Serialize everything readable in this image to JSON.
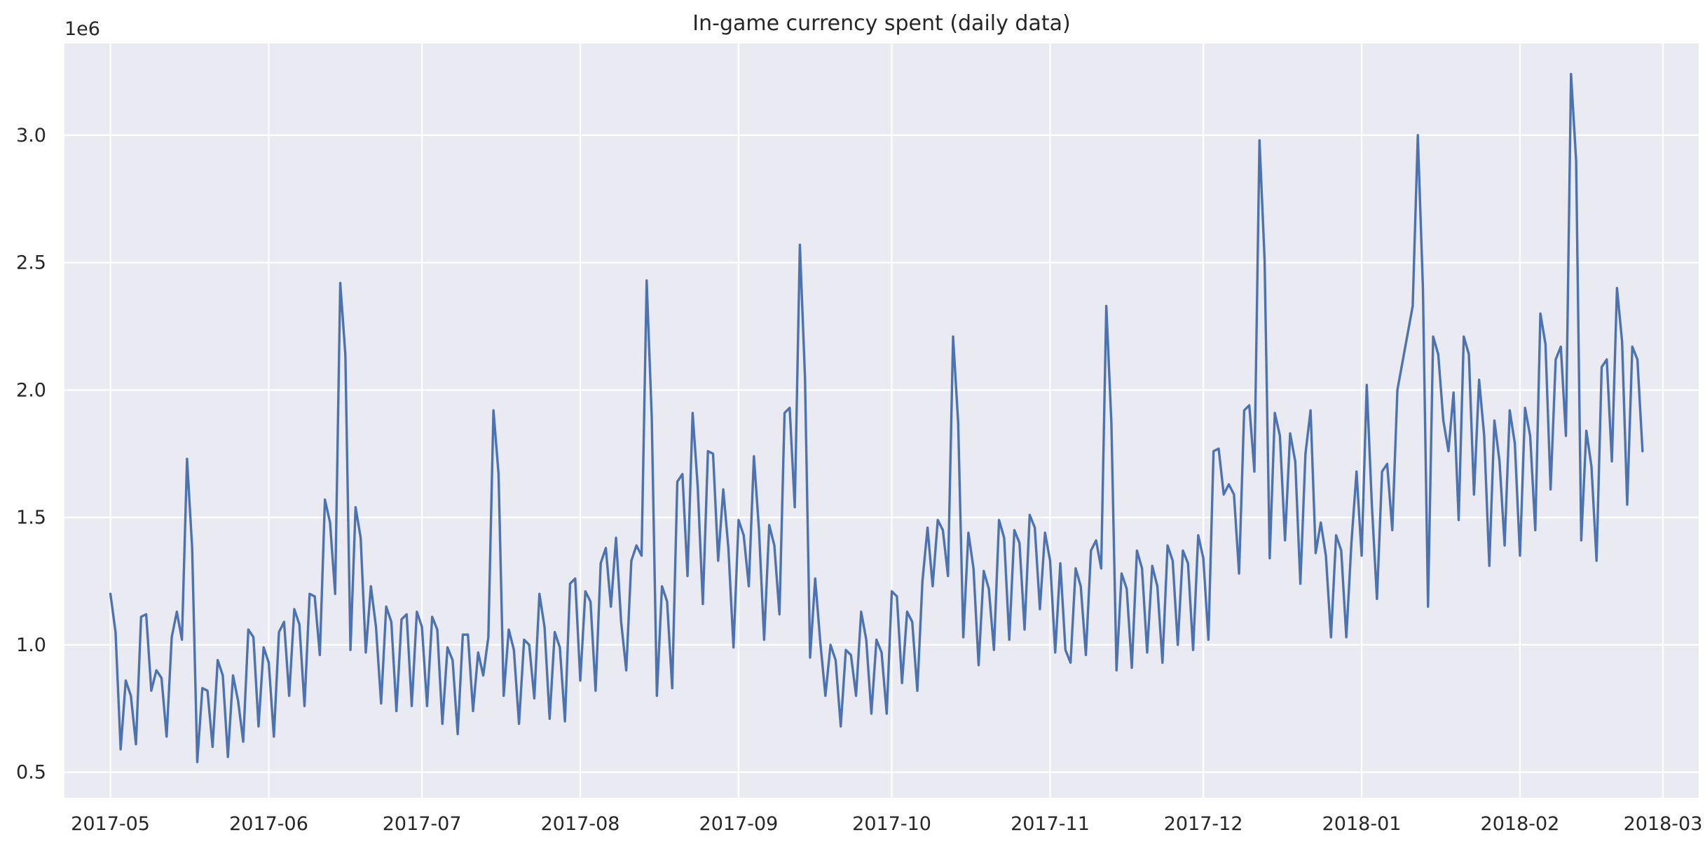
{
  "chart_data": {
    "type": "line",
    "title": "In-game currency spent (daily data)",
    "xlabel": "",
    "ylabel": "",
    "y_scale_label": "1e6",
    "style": {
      "background": "#eaeaf2",
      "grid": true,
      "grid_color": "#ffffff",
      "line_color": "#4c72b0"
    },
    "xlim": [
      "2017-04-22",
      "2018-03-08"
    ],
    "ylim": [
      0.4,
      3.36
    ],
    "x_ticks": [
      {
        "date": "2017-05-01",
        "label": "2017-05"
      },
      {
        "date": "2017-06-01",
        "label": "2017-06"
      },
      {
        "date": "2017-07-01",
        "label": "2017-07"
      },
      {
        "date": "2017-08-01",
        "label": "2017-08"
      },
      {
        "date": "2017-09-01",
        "label": "2017-09"
      },
      {
        "date": "2017-10-01",
        "label": "2017-10"
      },
      {
        "date": "2017-11-01",
        "label": "2017-11"
      },
      {
        "date": "2017-12-01",
        "label": "2017-12"
      },
      {
        "date": "2018-01-01",
        "label": "2018-01"
      },
      {
        "date": "2018-02-01",
        "label": "2018-02"
      },
      {
        "date": "2018-03-01",
        "label": "2018-03"
      }
    ],
    "y_ticks": [
      {
        "value": 0.5,
        "label": "0.5"
      },
      {
        "value": 1.0,
        "label": "1.0"
      },
      {
        "value": 1.5,
        "label": "1.5"
      },
      {
        "value": 2.0,
        "label": "2.0"
      },
      {
        "value": 2.5,
        "label": "2.5"
      },
      {
        "value": 3.0,
        "label": "3.0"
      }
    ],
    "series": [
      {
        "x_start": "2017-05-01",
        "x_step_days": 1,
        "values": [
          1.2,
          1.05,
          0.59,
          0.86,
          0.8,
          0.61,
          1.11,
          1.12,
          0.82,
          0.9,
          0.87,
          0.64,
          1.03,
          1.13,
          1.02,
          1.73,
          1.38,
          0.54,
          0.83,
          0.82,
          0.6,
          0.94,
          0.88,
          0.56,
          0.88,
          0.78,
          0.62,
          1.06,
          1.03,
          0.68,
          0.99,
          0.93,
          0.64,
          1.05,
          1.09,
          0.8,
          1.14,
          1.08,
          0.76,
          1.2,
          1.19,
          0.96,
          1.57,
          1.48,
          1.2,
          2.42,
          2.14,
          0.98,
          1.54,
          1.42,
          0.97,
          1.23,
          1.07,
          0.77,
          1.15,
          1.09,
          0.74,
          1.1,
          1.12,
          0.76,
          1.13,
          1.07,
          0.76,
          1.11,
          1.06,
          0.69,
          0.99,
          0.94,
          0.65,
          1.04,
          1.04,
          0.74,
          0.97,
          0.88,
          1.03,
          1.92,
          1.67,
          0.8,
          1.06,
          0.98,
          0.69,
          1.02,
          1.0,
          0.79,
          1.2,
          1.07,
          0.71,
          1.05,
          0.99,
          0.7,
          1.24,
          1.26,
          0.86,
          1.21,
          1.17,
          0.82,
          1.32,
          1.38,
          1.15,
          1.42,
          1.09,
          0.9,
          1.33,
          1.39,
          1.35,
          2.43,
          1.89,
          0.8,
          1.23,
          1.17,
          0.83,
          1.64,
          1.67,
          1.27,
          1.91,
          1.62,
          1.16,
          1.76,
          1.75,
          1.33,
          1.61,
          1.38,
          0.99,
          1.49,
          1.43,
          1.23,
          1.74,
          1.45,
          1.02,
          1.47,
          1.39,
          1.12,
          1.91,
          1.93,
          1.54,
          2.57,
          2.05,
          0.95,
          1.26,
          1.01,
          0.8,
          1.0,
          0.94,
          0.68,
          0.98,
          0.96,
          0.8,
          1.13,
          1.02,
          0.73,
          1.02,
          0.97,
          0.73,
          1.21,
          1.19,
          0.85,
          1.13,
          1.09,
          0.82,
          1.25,
          1.46,
          1.23,
          1.49,
          1.45,
          1.27,
          2.21,
          1.87,
          1.03,
          1.44,
          1.3,
          0.92,
          1.29,
          1.22,
          0.98,
          1.49,
          1.42,
          1.02,
          1.45,
          1.4,
          1.06,
          1.51,
          1.46,
          1.14,
          1.44,
          1.33,
          0.97,
          1.32,
          0.98,
          0.93,
          1.3,
          1.23,
          0.96,
          1.37,
          1.41,
          1.3,
          2.33,
          1.87,
          0.9,
          1.28,
          1.22,
          0.91,
          1.37,
          1.3,
          0.97,
          1.31,
          1.23,
          0.93,
          1.39,
          1.33,
          1.0,
          1.37,
          1.32,
          0.98,
          1.43,
          1.34,
          1.02,
          1.76,
          1.77,
          1.59,
          1.63,
          1.59,
          1.28,
          1.92,
          1.94,
          1.68,
          2.98,
          2.51,
          1.34,
          1.91,
          1.82,
          1.41,
          1.83,
          1.72,
          1.24,
          1.75,
          1.92,
          1.36,
          1.48,
          1.35,
          1.03,
          1.43,
          1.37,
          1.03,
          1.4,
          1.68,
          1.35,
          2.02,
          1.55,
          1.18,
          1.68,
          1.71,
          1.45,
          2.0,
          2.11,
          2.22,
          2.33,
          3.0,
          2.4,
          1.15,
          2.21,
          2.14,
          1.88,
          1.76,
          1.99,
          1.49,
          2.21,
          2.14,
          1.59,
          2.04,
          1.82,
          1.31,
          1.88,
          1.72,
          1.39,
          1.92,
          1.79,
          1.35,
          1.93,
          1.82,
          1.45,
          2.3,
          2.18,
          1.61,
          2.12,
          2.17,
          1.82,
          3.24,
          2.9,
          1.41,
          1.84,
          1.7,
          1.33,
          2.09,
          2.12,
          1.72,
          2.4,
          2.19,
          1.55,
          2.17,
          2.12,
          1.76
        ]
      }
    ]
  }
}
